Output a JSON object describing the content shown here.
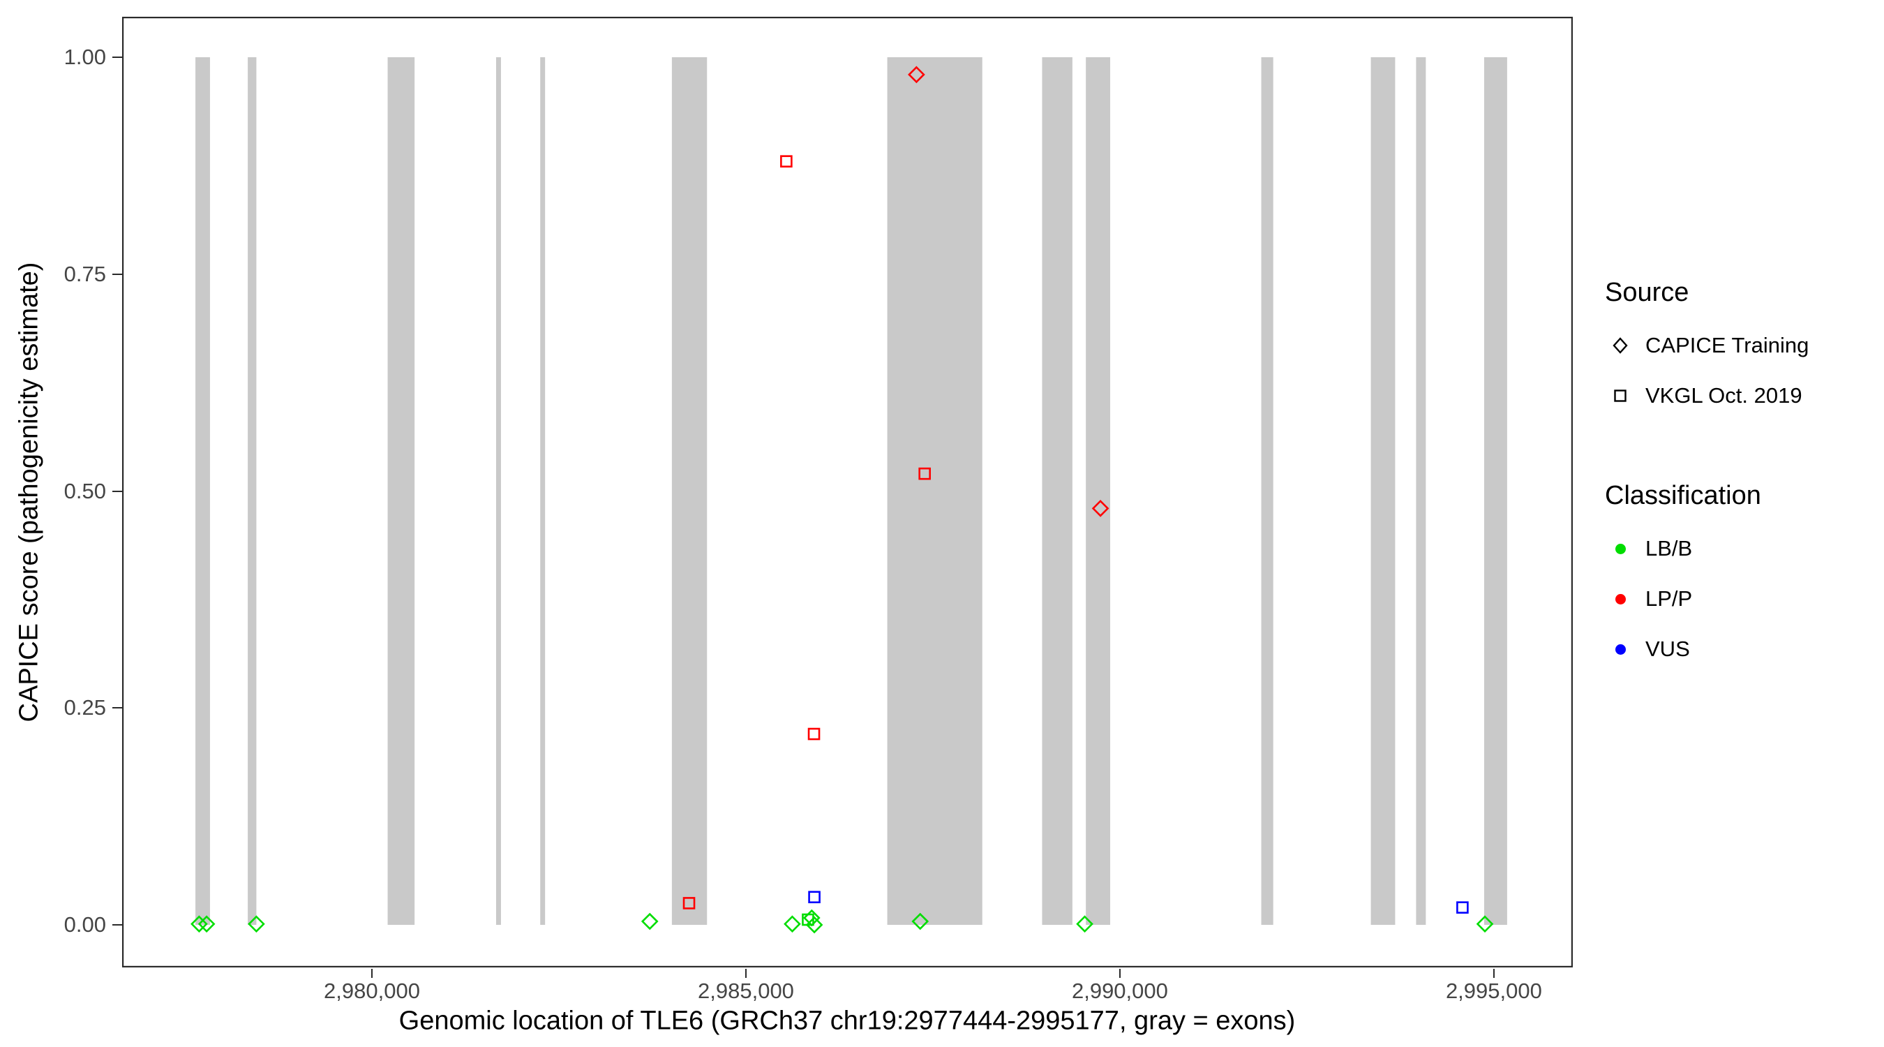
{
  "chart_data": {
    "type": "scatter",
    "title": "",
    "xlabel": "Genomic location of TLE6 (GRCh37 chr19:2977444-2995177, gray = exons)",
    "ylabel": "CAPICE score (pathogenicity estimate)",
    "x_domain": [
      2976660,
      2996055
    ],
    "ylim": [
      0,
      1
    ],
    "x_ticks": [
      {
        "value": 2980000,
        "label": "2,980,000"
      },
      {
        "value": 2985000,
        "label": "2,985,000"
      },
      {
        "value": 2990000,
        "label": "2,990,000"
      },
      {
        "value": 2995000,
        "label": "2,995,000"
      }
    ],
    "y_ticks": [
      {
        "value": 0.0,
        "label": "0.00"
      },
      {
        "value": 0.25,
        "label": "0.25"
      },
      {
        "value": 0.5,
        "label": "0.50"
      },
      {
        "value": 0.75,
        "label": "0.75"
      },
      {
        "value": 1.0,
        "label": "1.00"
      }
    ],
    "colors": {
      "LB/B": "#00DD00",
      "LP/P": "#FF0000",
      "VUS": "#0000FF",
      "exon": "#C9C9C9",
      "axis": "#2b2b2b"
    },
    "exons": [
      [
        2977640,
        2977835
      ],
      [
        2978340,
        2978455
      ],
      [
        2980210,
        2980570
      ],
      [
        2981660,
        2981725
      ],
      [
        2982250,
        2982315
      ],
      [
        2984010,
        2984480
      ],
      [
        2986890,
        2988160
      ],
      [
        2988960,
        2989365
      ],
      [
        2989545,
        2989870
      ],
      [
        2991890,
        2992050
      ],
      [
        2993355,
        2993680
      ],
      [
        2993960,
        2994090
      ],
      [
        2994870,
        2995177
      ]
    ],
    "points": [
      {
        "x": 2987280,
        "y": 0.98,
        "source": "CAPICE Training",
        "classification": "LP/P"
      },
      {
        "x": 2985540,
        "y": 0.88,
        "source": "VKGL Oct. 2019",
        "classification": "LP/P"
      },
      {
        "x": 2987390,
        "y": 0.52,
        "source": "VKGL Oct. 2019",
        "classification": "LP/P"
      },
      {
        "x": 2989740,
        "y": 0.48,
        "source": "CAPICE Training",
        "classification": "LP/P"
      },
      {
        "x": 2985910,
        "y": 0.22,
        "source": "VKGL Oct. 2019",
        "classification": "LP/P"
      },
      {
        "x": 2984240,
        "y": 0.025,
        "source": "VKGL Oct. 2019",
        "classification": "LP/P"
      },
      {
        "x": 2985915,
        "y": 0.032,
        "source": "VKGL Oct. 2019",
        "classification": "VUS"
      },
      {
        "x": 2994580,
        "y": 0.02,
        "source": "VKGL Oct. 2019",
        "classification": "VUS"
      },
      {
        "x": 2977690,
        "y": 0.001,
        "source": "CAPICE Training",
        "classification": "LB/B"
      },
      {
        "x": 2977790,
        "y": 0.001,
        "source": "CAPICE Training",
        "classification": "LB/B"
      },
      {
        "x": 2978455,
        "y": 0.001,
        "source": "CAPICE Training",
        "classification": "LB/B"
      },
      {
        "x": 2983715,
        "y": 0.004,
        "source": "CAPICE Training",
        "classification": "LB/B"
      },
      {
        "x": 2985620,
        "y": 0.001,
        "source": "CAPICE Training",
        "classification": "LB/B"
      },
      {
        "x": 2985830,
        "y": 0.006,
        "source": "VKGL Oct. 2019",
        "classification": "LB/B"
      },
      {
        "x": 2985880,
        "y": 0.008,
        "source": "CAPICE Training",
        "classification": "LB/B"
      },
      {
        "x": 2985915,
        "y": 0.0,
        "source": "CAPICE Training",
        "classification": "LB/B"
      },
      {
        "x": 2987330,
        "y": 0.004,
        "source": "CAPICE Training",
        "classification": "LB/B"
      },
      {
        "x": 2989530,
        "y": 0.001,
        "source": "CAPICE Training",
        "classification": "LB/B"
      },
      {
        "x": 2994880,
        "y": 0.001,
        "source": "CAPICE Training",
        "classification": "LB/B"
      }
    ]
  },
  "legend": {
    "source": {
      "title": "Source",
      "items": [
        {
          "label": "CAPICE Training",
          "marker": "diamond"
        },
        {
          "label": "VKGL Oct. 2019",
          "marker": "square"
        }
      ]
    },
    "classification": {
      "title": "Classification",
      "items": [
        {
          "label": "LB/B"
        },
        {
          "label": "LP/P"
        },
        {
          "label": "VUS"
        }
      ]
    }
  }
}
